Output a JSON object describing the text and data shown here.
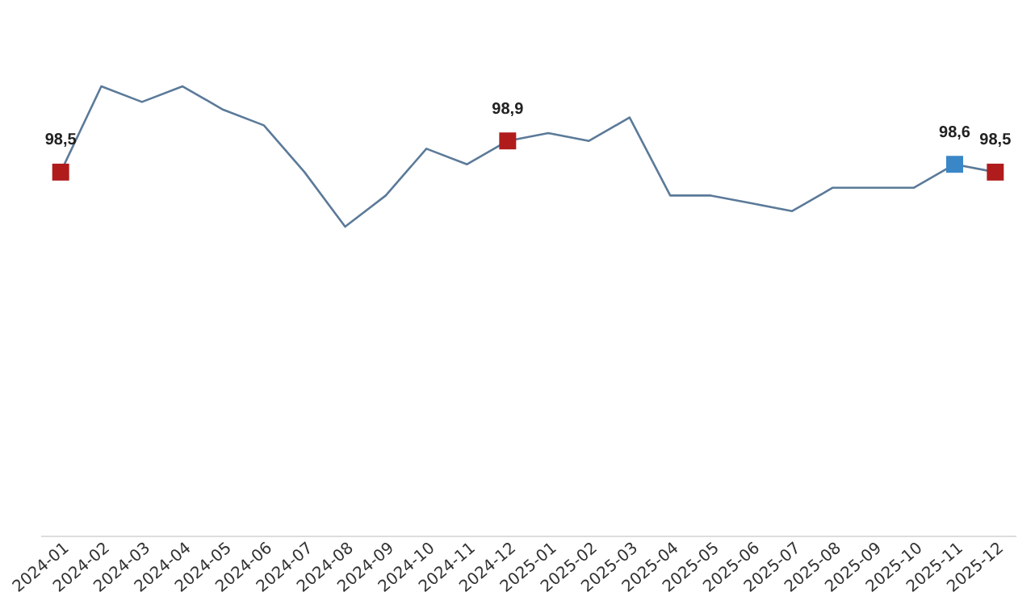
{
  "chart_data": {
    "type": "line",
    "categories": [
      "2024-01",
      "2024-02",
      "2024-03",
      "2024-04",
      "2024-05",
      "2024-06",
      "2024-07",
      "2024-08",
      "2024-09",
      "2024-10",
      "2024-11",
      "2024-12",
      "2025-01",
      "2025-02",
      "2025-03",
      "2025-04",
      "2025-05",
      "2025-06",
      "2025-07",
      "2025-08",
      "2025-09",
      "2025-10",
      "2025-11",
      "2025-12"
    ],
    "series": [
      {
        "color": "#5b7a99",
        "values": [
          98.5,
          99.6,
          99.4,
          99.6,
          99.3,
          99.1,
          98.5,
          97.8,
          98.2,
          98.8,
          98.6,
          98.9,
          99.0,
          98.9,
          99.2,
          98.2,
          98.2,
          98.1,
          98.0,
          98.3,
          98.3,
          98.3,
          98.6,
          98.5
        ],
        "colors": [
          "#b01c1c",
          null,
          null,
          null,
          null,
          null,
          null,
          null,
          null,
          null,
          null,
          "#b01c1c",
          null,
          null,
          null,
          null,
          null,
          null,
          null,
          null,
          null,
          null,
          "#3a87c8",
          "#b01c1c"
        ],
        "value_labels": [
          "98,5",
          null,
          null,
          null,
          null,
          null,
          null,
          null,
          null,
          null,
          null,
          "98,9",
          null,
          null,
          null,
          null,
          null,
          null,
          null,
          null,
          null,
          null,
          "98,6",
          "98,5"
        ]
      }
    ],
    "line_style": "solid"
  }
}
